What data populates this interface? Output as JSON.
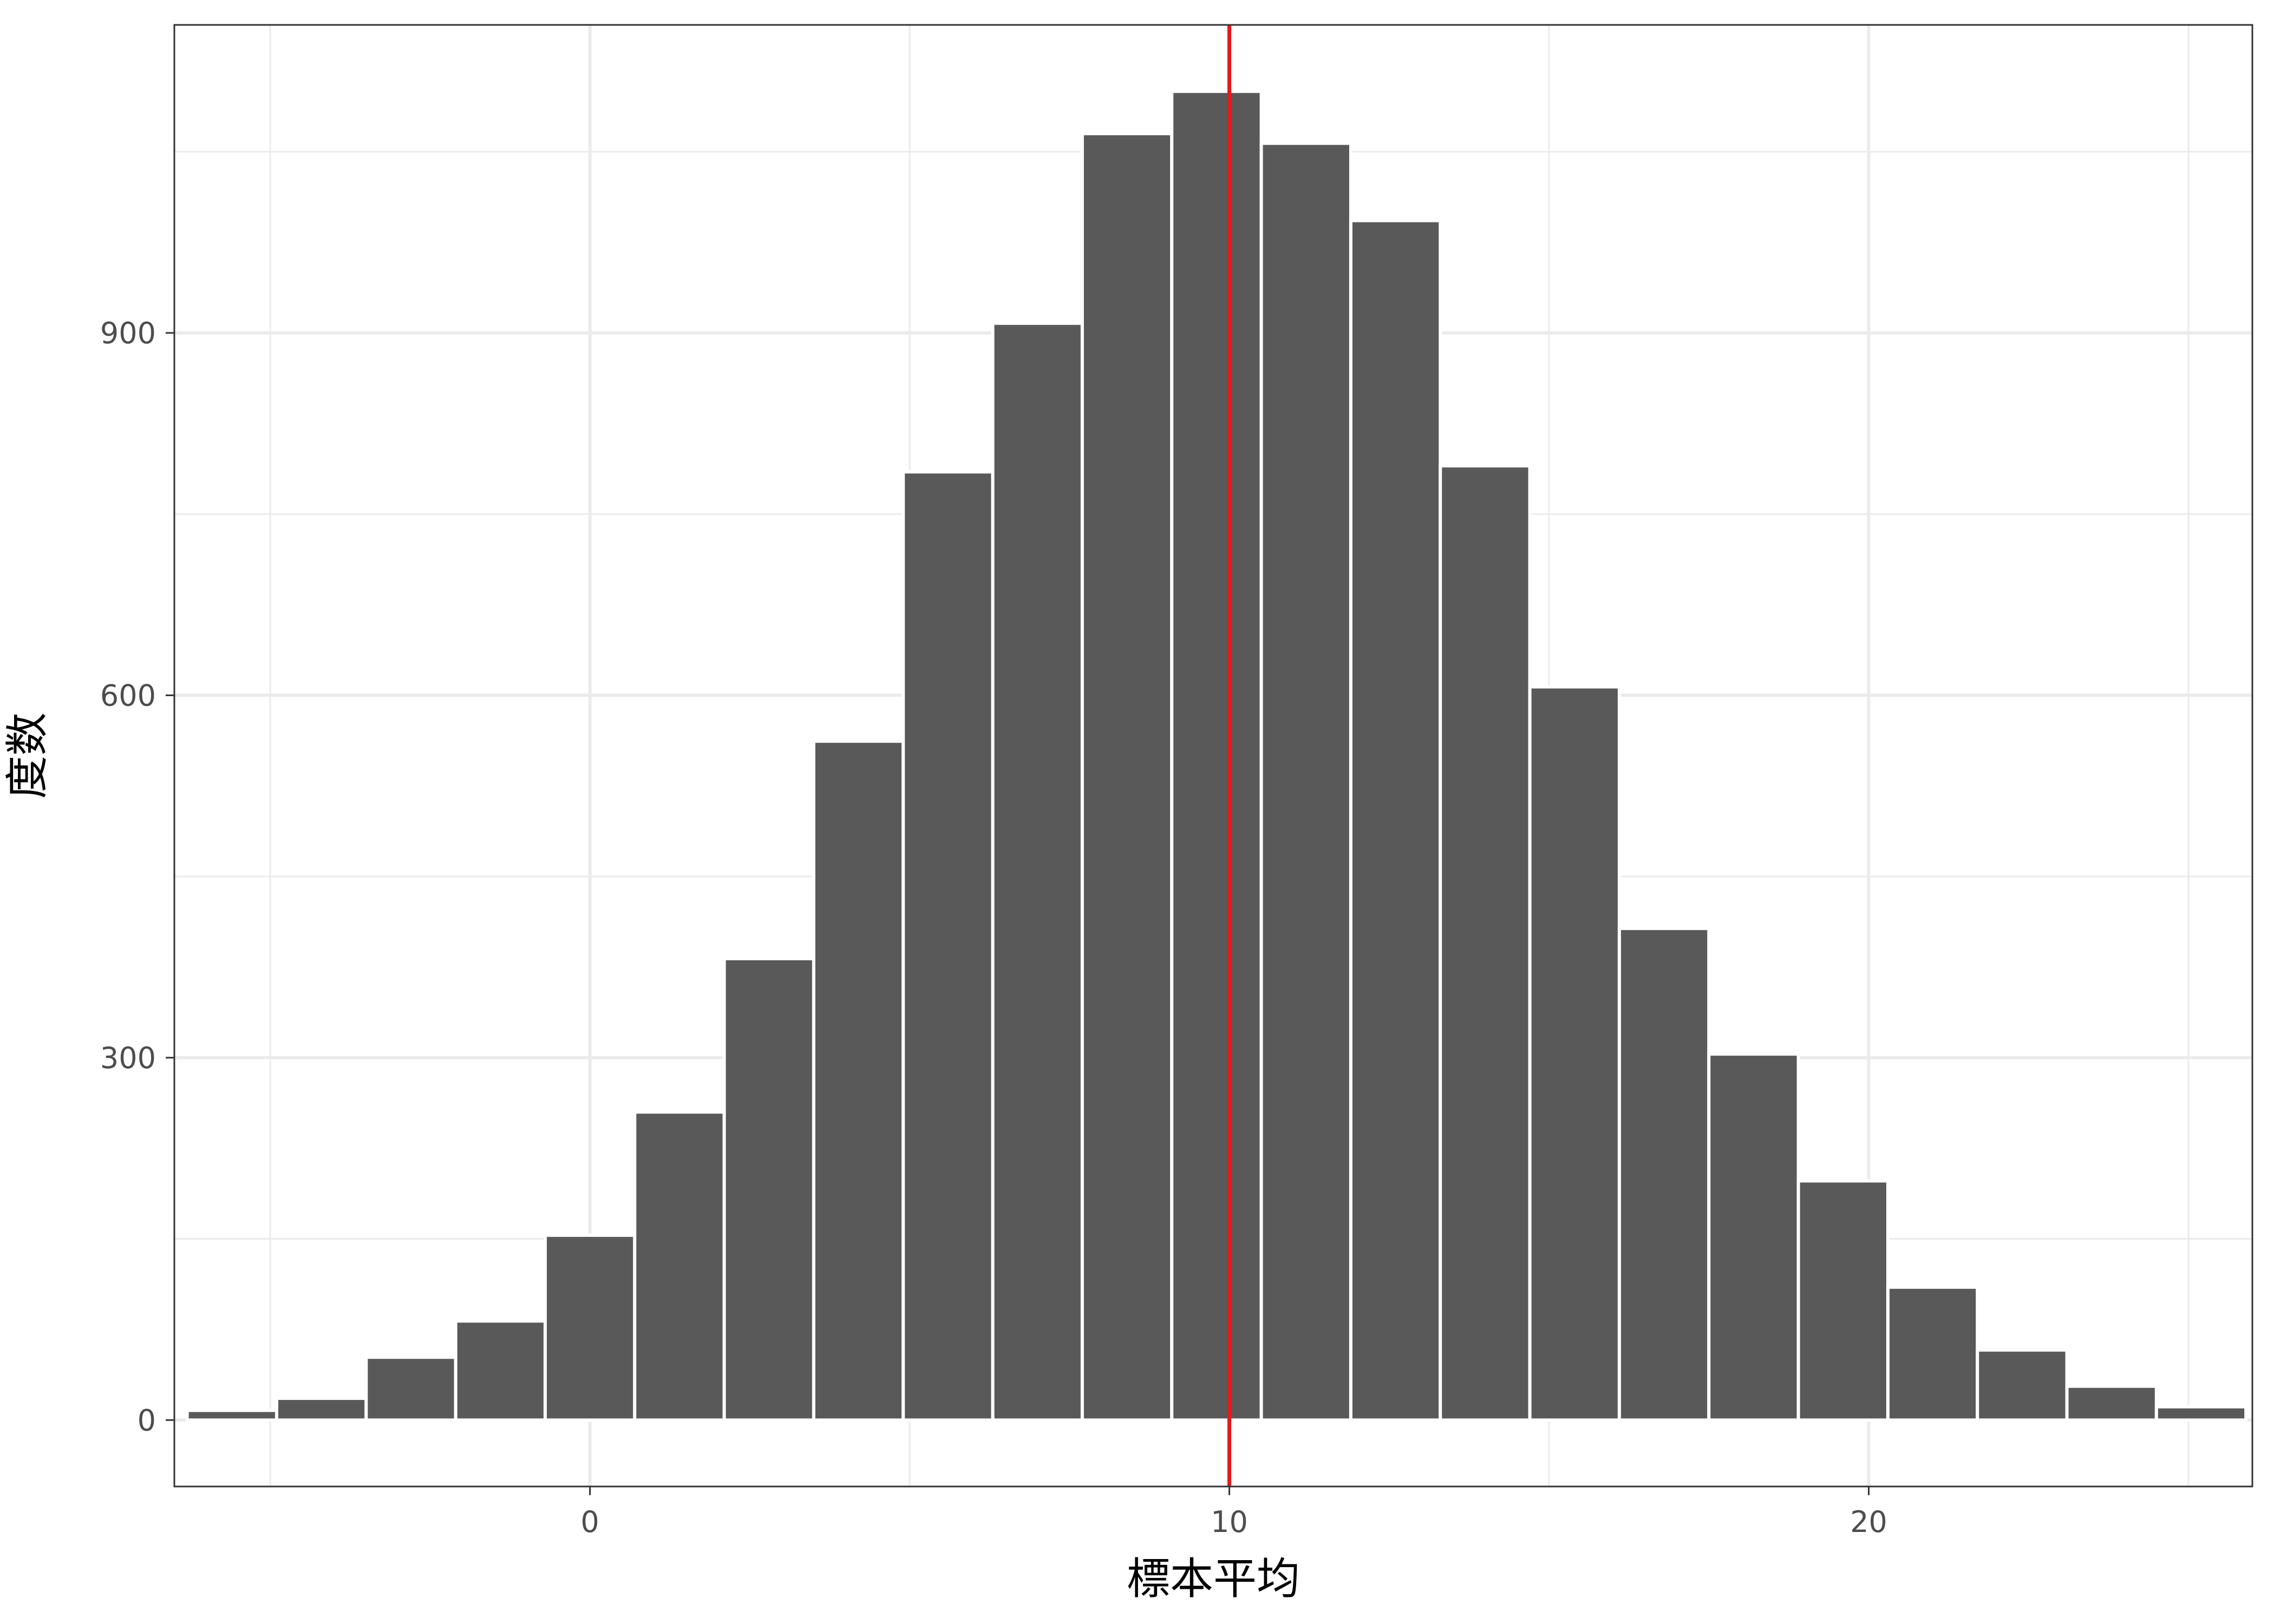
{
  "chart_data": {
    "type": "bar",
    "subtype": "histogram",
    "title": "",
    "xlabel": "標本平均",
    "ylabel": "度数",
    "bin_width": 1.4,
    "bin_centers": [
      -5.6,
      -4.2,
      -2.8,
      -1.4,
      0.0,
      1.4,
      2.8,
      4.2,
      5.6,
      7.0,
      8.4,
      9.8,
      11.2,
      12.6,
      14.0,
      15.4,
      16.8,
      18.2,
      19.6,
      21.0,
      22.4,
      23.8,
      25.2
    ],
    "values": [
      8,
      18,
      52,
      82,
      153,
      255,
      382,
      562,
      785,
      908,
      1065,
      1100,
      1057,
      993,
      790,
      607,
      407,
      303,
      198,
      110,
      58,
      28,
      11
    ],
    "xlim": [
      -13.0,
      53.0
    ],
    "ylim": [
      -55,
      1155
    ],
    "x_ticks": [
      0,
      10,
      20
    ],
    "x_tick_labels": [
      "0",
      "10",
      "20"
    ],
    "y_ticks": [
      0,
      300,
      600,
      900
    ],
    "y_tick_labels": [
      "0",
      "300",
      "600",
      "900"
    ],
    "x_minor_ticks": [
      -5,
      5,
      15,
      25
    ],
    "y_minor_ticks": [
      150,
      450,
      750,
      1050
    ],
    "reference_line": {
      "axis": "x",
      "value": 10,
      "color": "#e41a1c"
    },
    "bar_color": "#595959",
    "bar_edge_color": "#ffffff",
    "grid": true,
    "legend": "none",
    "theme": "bw"
  }
}
